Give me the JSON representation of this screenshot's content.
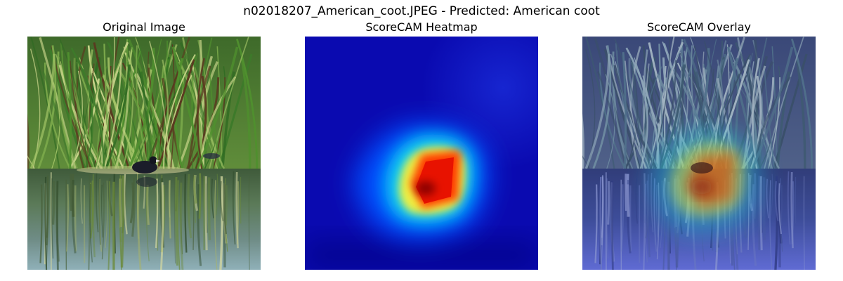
{
  "figure": {
    "title": "n02018207_American_coot.JPEG - Predicted: American coot"
  },
  "panels": [
    {
      "title": "Original Image"
    },
    {
      "title": "ScoreCAM Heatmap"
    },
    {
      "title": "ScoreCAM Overlay"
    }
  ],
  "colormap": "jet",
  "colors": {
    "heatmap_background": "#0a0aa8",
    "heatmap_peak": "#7a0000",
    "water": "#4f6d78",
    "reeds": "#4f8f2e",
    "coot": "#1b1d2a"
  }
}
